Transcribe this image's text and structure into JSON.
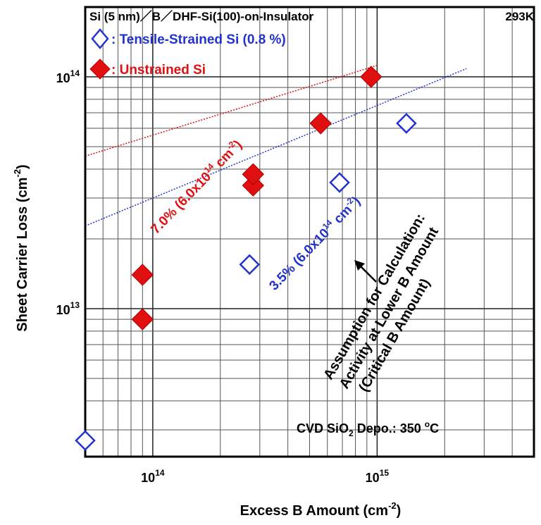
{
  "chart_data": {
    "type": "scatter",
    "title": "Si (5 nm)／B／DHF-Si(100)-on-Insulator",
    "temperature": "293K",
    "xlabel": "Excess B Amount (cm",
    "xlabel_exp": "-2",
    "xlabel_close": ")",
    "ylabel": "Sheet Carrier Loss (cm",
    "ylabel_exp": "-2",
    "ylabel_close": ")",
    "xscale": "log",
    "yscale": "log",
    "xlim": [
      50000000000000.0,
      5000000000000000.0
    ],
    "ylim": [
      2300000000000.0,
      200000000000000.0
    ],
    "grid": true,
    "legend_position": "top-left",
    "x_ticks": [
      {
        "value": 100000000000000.0,
        "base": "10",
        "exp": "14"
      },
      {
        "value": 1000000000000000.0,
        "base": "10",
        "exp": "15"
      }
    ],
    "y_ticks": [
      {
        "value": 10000000000000.0,
        "base": "10",
        "exp": "13"
      },
      {
        "value": 100000000000000.0,
        "base": "10",
        "exp": "14"
      }
    ],
    "series": [
      {
        "name": ": Tensile-Strained Si (0.8 %)",
        "marker": "diamond-open",
        "color": "#2233cc",
        "points": [
          {
            "x": 50000000000000.0,
            "y": 2700000000000.0
          },
          {
            "x": 270000000000000.0,
            "y": 15500000000000.0
          },
          {
            "x": 680000000000000.0,
            "y": 35000000000000.0
          },
          {
            "x": 1350000000000000.0,
            "y": 63000000000000.0
          }
        ],
        "fit_label": "3.5% (6.0x10",
        "fit_exp": "14",
        "fit_unit": " cm",
        "fit_unit_exp": "-2",
        "fit_close": ")",
        "fit": {
          "slope": 0.035,
          "offset": 600000000000000.0,
          "x_range": [
            50000000000000.0,
            2500000000000000.0
          ]
        }
      },
      {
        "name": ": Unstrained Si",
        "marker": "diamond-filled",
        "color": "#e01010",
        "points": [
          {
            "x": 90000000000000.0,
            "y": 9000000000000.0
          },
          {
            "x": 90000000000000.0,
            "y": 14000000000000.0
          },
          {
            "x": 280000000000000.0,
            "y": 34000000000000.0
          },
          {
            "x": 280000000000000.0,
            "y": 38000000000000.0
          },
          {
            "x": 560000000000000.0,
            "y": 63000000000000.0
          },
          {
            "x": 940000000000000.0,
            "y": 100000000000000.0
          }
        ],
        "fit_label": "7.0% (6.0x10",
        "fit_exp": "14",
        "fit_unit": " cm",
        "fit_unit_exp": "-2",
        "fit_close": ")",
        "fit": {
          "slope": 0.07,
          "offset": 600000000000000.0,
          "x_range": [
            50000000000000.0,
            1000000000000000.0
          ]
        }
      }
    ],
    "annotations": {
      "assumption_lines": [
        "Assumption for Calculation:",
        "Activity at Lower B Amount",
        "(Critical B Amount)"
      ],
      "deposition_prefix": "CVD SiO",
      "deposition_sub": "2",
      "deposition_mid": " Depo.: 350 ",
      "deposition_sup": "o",
      "deposition_suffix": "C"
    }
  }
}
